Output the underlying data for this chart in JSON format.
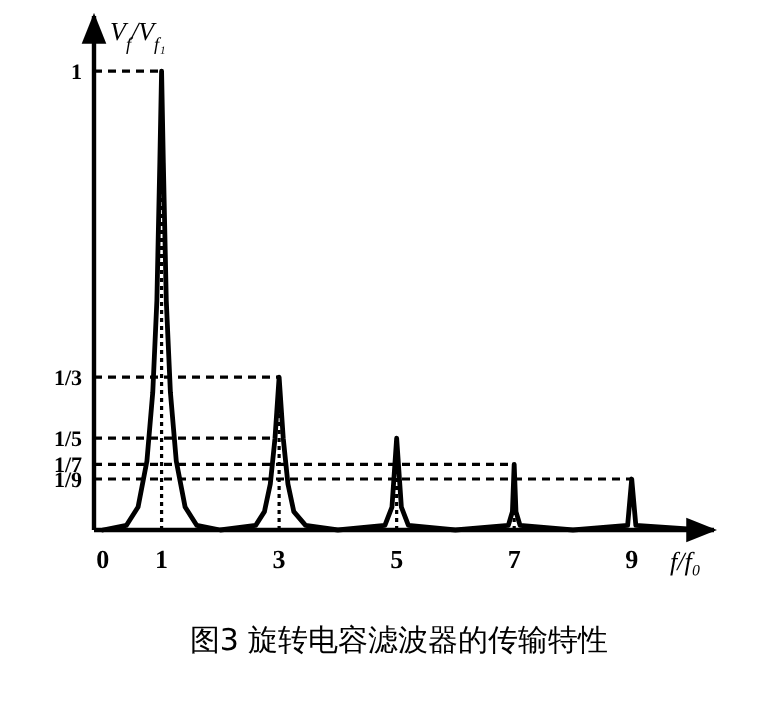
{
  "chart_data": {
    "type": "line",
    "title": "图3 旋转电容滤波器的传输特性",
    "xlabel": "f/f₀",
    "ylabel": "V$_{f}$/V$_{f₁}$",
    "xlim": [
      -0.15,
      10.4
    ],
    "ylim": [
      0,
      1.12
    ],
    "xticks": [
      0,
      1,
      3,
      5,
      7,
      9
    ],
    "yticks": [
      {
        "value": 1,
        "label": "1"
      },
      {
        "value": 0.3333,
        "label": "1/3"
      },
      {
        "value": 0.2,
        "label": "1/5"
      },
      {
        "value": 0.1429,
        "label": "1/7"
      },
      {
        "value": 0.1111,
        "label": "1/9"
      }
    ],
    "grid": false,
    "marker": "none",
    "line_style": "solid",
    "series": [
      {
        "color": "#000000",
        "x": [
          0,
          0.4,
          0.6,
          0.75,
          0.85,
          0.92,
          0.97,
          1,
          1.03,
          1.08,
          1.15,
          1.25,
          1.4,
          1.6,
          2.0,
          2.6,
          2.75,
          2.85,
          2.93,
          3,
          3.07,
          3.15,
          3.25,
          3.45,
          4.0,
          4.8,
          4.92,
          5,
          5.08,
          5.2,
          6.0,
          6.9,
          6.97,
          7,
          7.03,
          7.1,
          8.0,
          8.93,
          9,
          9.07,
          10.2
        ],
        "values": [
          0,
          0.01,
          0.05,
          0.15,
          0.3,
          0.5,
          0.8,
          1,
          0.8,
          0.5,
          0.3,
          0.15,
          0.05,
          0.01,
          0,
          0.01,
          0.04,
          0.1,
          0.2,
          0.3333,
          0.2,
          0.1,
          0.04,
          0.01,
          0,
          0.01,
          0.05,
          0.2,
          0.05,
          0.01,
          0,
          0.01,
          0.04,
          0.1429,
          0.04,
          0.01,
          0,
          0.01,
          0.1111,
          0.01,
          0
        ]
      }
    ],
    "ref_lines": [
      {
        "axis": "y",
        "value": 1,
        "color": "#000000",
        "line_style": "dashed"
      },
      {
        "axis": "y",
        "value": 0.3333,
        "color": "#000000",
        "line_style": "dashed"
      },
      {
        "axis": "y",
        "value": 0.2,
        "color": "#000000",
        "line_style": "dashed"
      },
      {
        "axis": "y",
        "value": 0.1429,
        "color": "#000000",
        "line_style": "dashed"
      },
      {
        "axis": "y",
        "value": 0.1111,
        "color": "#000000",
        "line_style": "dashed"
      },
      {
        "axis": "x",
        "value": 1,
        "color": "#000000",
        "line_style": "dotted"
      },
      {
        "axis": "x",
        "value": 3,
        "color": "#000000",
        "line_style": "dotted"
      },
      {
        "axis": "x",
        "value": 5,
        "color": "#000000",
        "line_style": "dotted"
      },
      {
        "axis": "x",
        "value": 7,
        "color": "#000000",
        "line_style": "dotted"
      }
    ]
  }
}
